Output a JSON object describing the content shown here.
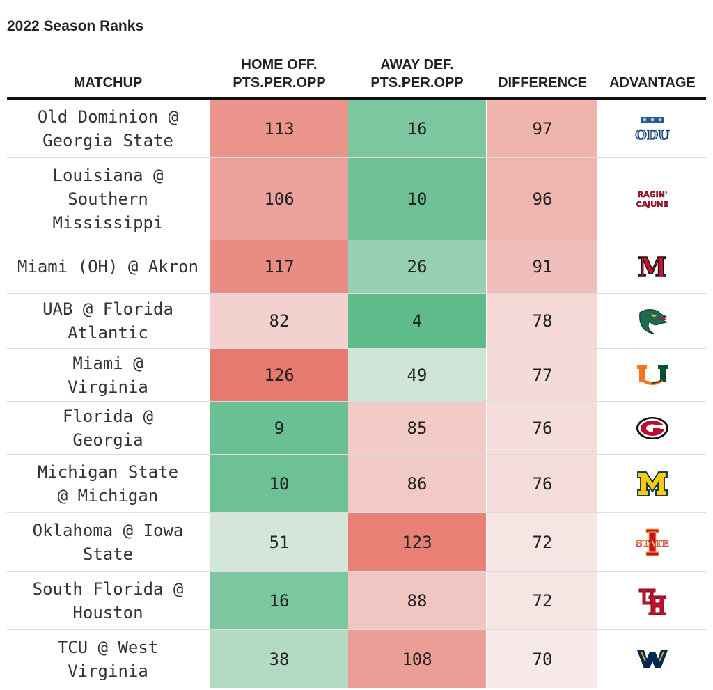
{
  "title": "2022 Season Ranks",
  "headers": {
    "matchup": "MATCHUP",
    "home_off": "HOME OFF.\nPTS.PER.OPP",
    "away_def": "AWAY DEF.\nPTS.PER.OPP",
    "difference": "DIFFERENCE",
    "advantage": "ADVANTAGE"
  },
  "logo_text": {
    "odu": "ODU",
    "ragin_top": "RAGIN'",
    "ragin_bottom": "CAJUNS",
    "miami_oh": "M",
    "iowa_state": "STATE"
  },
  "chart_data": {
    "type": "table",
    "title": "2022 Season Ranks",
    "columns": [
      "MATCHUP",
      "HOME OFF. PTS.PER.OPP",
      "AWAY DEF. PTS.PER.OPP",
      "DIFFERENCE",
      "ADVANTAGE"
    ],
    "color_scale": {
      "low": "#56b986",
      "mid": "#f7f3f2",
      "high": "#e77a70"
    },
    "rows": [
      {
        "matchup": "Old Dominion @ Georgia State",
        "home_off": 113,
        "away_def": 16,
        "difference": 97,
        "advantage_icon": "old-dominion-logo"
      },
      {
        "matchup": "Louisiana @ Southern Mississippi",
        "home_off": 106,
        "away_def": 10,
        "difference": 96,
        "advantage_icon": "louisiana-ragin-cajuns-logo"
      },
      {
        "matchup": "Miami (OH) @ Akron",
        "home_off": 117,
        "away_def": 26,
        "difference": 91,
        "advantage_icon": "miami-ohio-logo"
      },
      {
        "matchup": "UAB @ Florida Atlantic",
        "home_off": 82,
        "away_def": 4,
        "difference": 78,
        "advantage_icon": "uab-dragon-logo"
      },
      {
        "matchup": "Miami @ Virginia",
        "home_off": 126,
        "away_def": 49,
        "difference": 77,
        "advantage_icon": "miami-u-logo"
      },
      {
        "matchup": "Florida @ Georgia",
        "home_off": 9,
        "away_def": 85,
        "difference": 76,
        "advantage_icon": "georgia-g-logo"
      },
      {
        "matchup": "Michigan State @ Michigan",
        "home_off": 10,
        "away_def": 86,
        "difference": 76,
        "advantage_icon": "michigan-block-m-logo"
      },
      {
        "matchup": "Oklahoma @ Iowa State",
        "home_off": 51,
        "away_def": 123,
        "difference": 72,
        "advantage_icon": "iowa-state-logo"
      },
      {
        "matchup": "South Florida @ Houston",
        "home_off": 16,
        "away_def": 88,
        "difference": 72,
        "advantage_icon": "houston-uh-logo"
      },
      {
        "matchup": "TCU @ West Virginia",
        "home_off": 38,
        "away_def": 108,
        "difference": 70,
        "advantage_icon": "west-virginia-logo"
      }
    ]
  }
}
